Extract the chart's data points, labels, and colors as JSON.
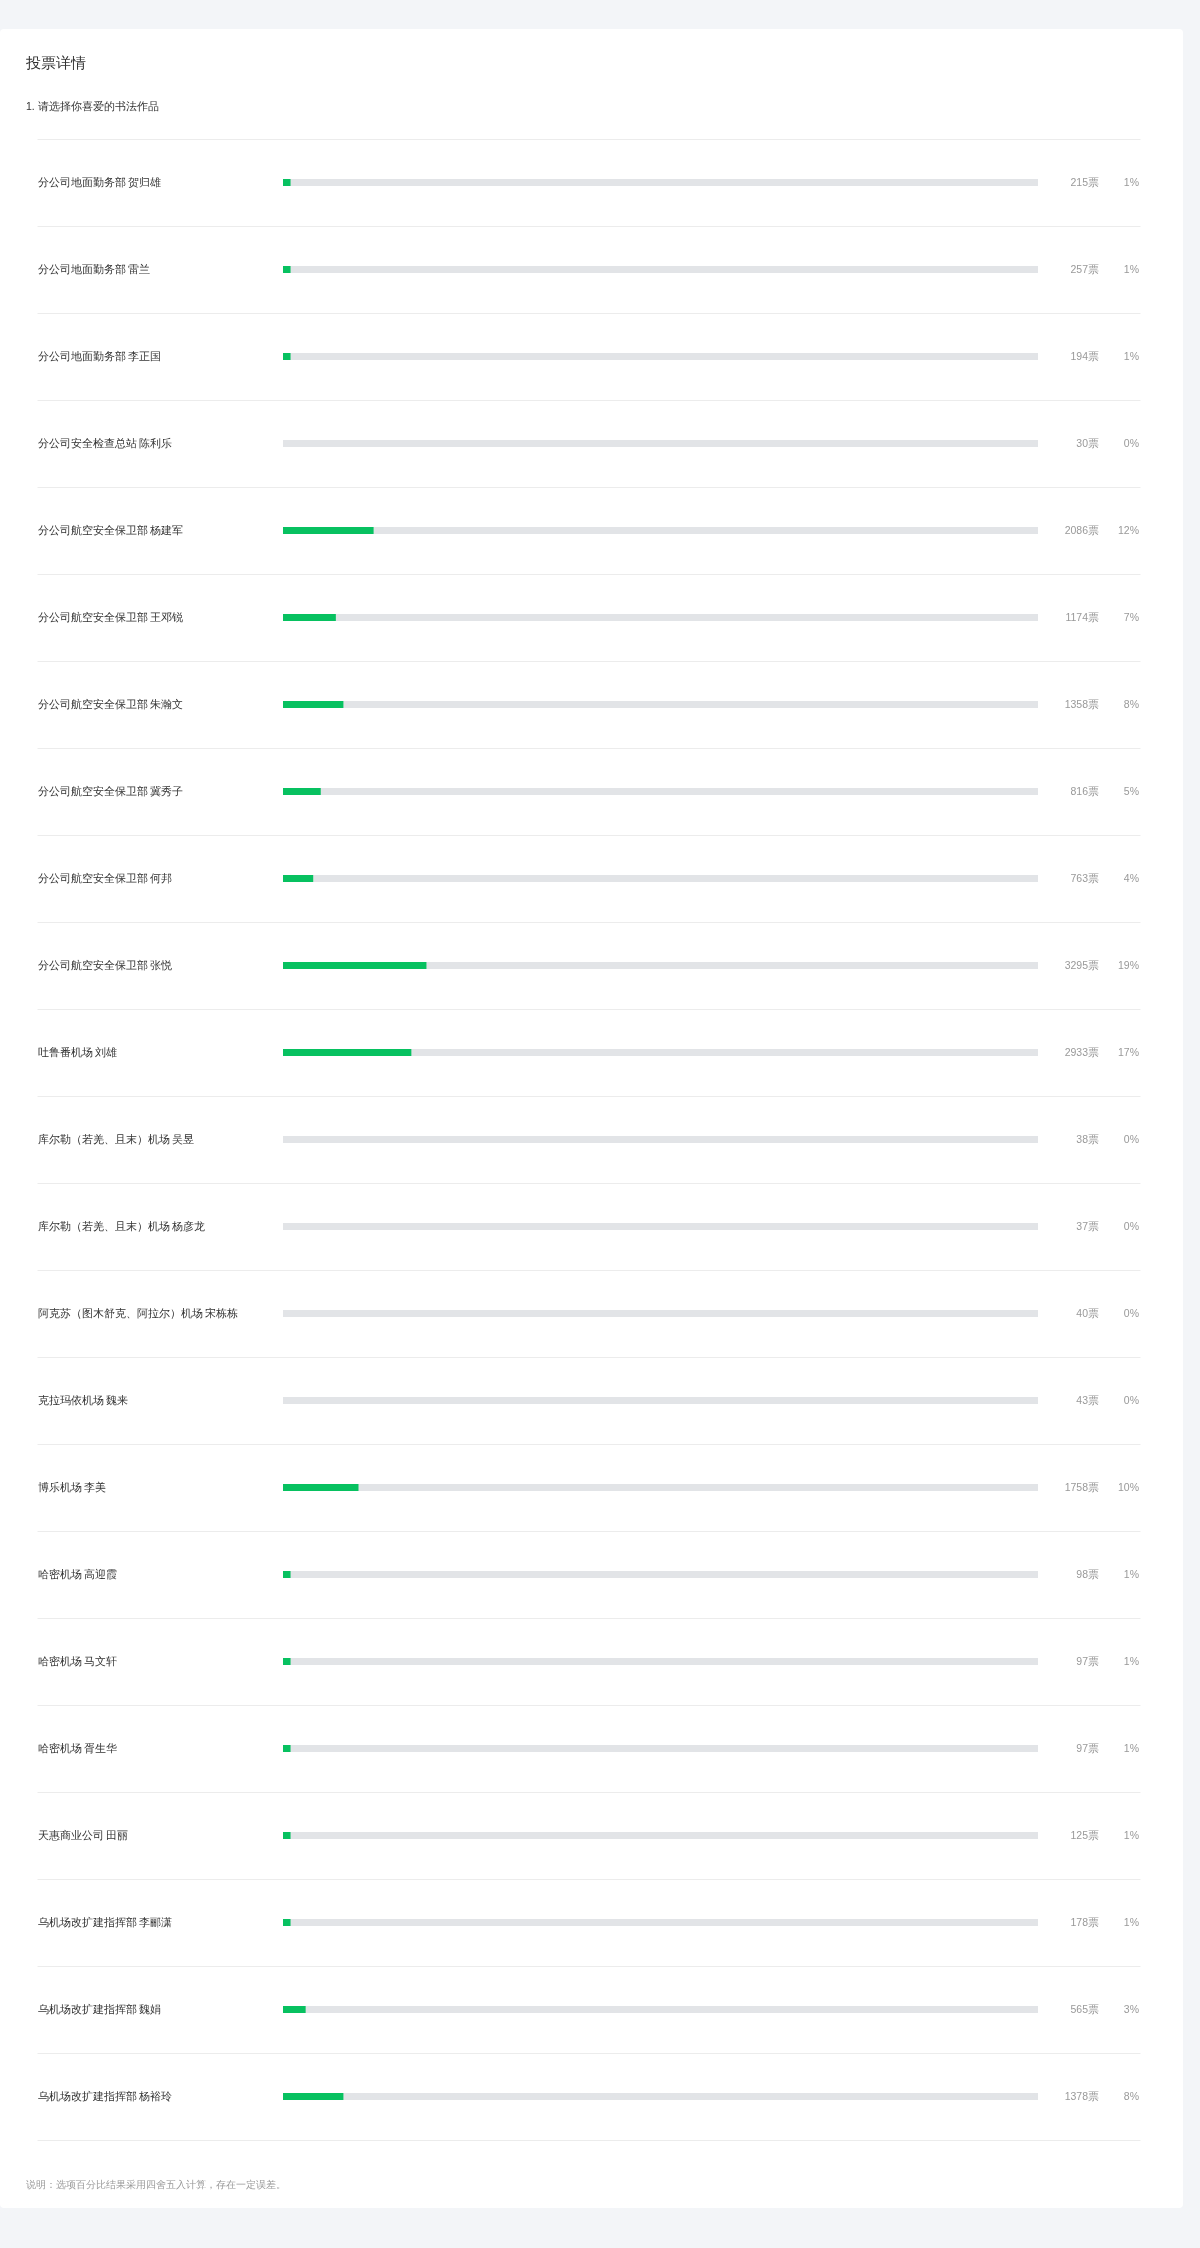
{
  "chart_data": {
    "type": "bar",
    "orientation": "horizontal",
    "title": "投票详情",
    "subtitle": "1. 请选择你喜爱的书法作品",
    "categories": [
      "分公司地面勤务部 贺归雄",
      "分公司地面勤务部 雷兰",
      "分公司地面勤务部 李正国",
      "分公司安全检查总站 陈利乐",
      "分公司航空安全保卫部 杨建军",
      "分公司航空安全保卫部 王邓锐",
      "分公司航空安全保卫部 朱瀚文",
      "分公司航空安全保卫部 冀秀子",
      "分公司航空安全保卫部 何邦",
      "分公司航空安全保卫部 张悦",
      "吐鲁番机场 刘雄",
      "库尔勒（若羌、且末）机场 吴昱",
      "库尔勒（若羌、且末）机场 杨彦龙",
      "阿克苏（图木舒克、阿拉尔）机场 宋栋栋",
      "克拉玛依机场 魏来",
      "博乐机场 李美",
      "哈密机场 高迎霞",
      "哈密机场 马文轩",
      "哈密机场 胥生华",
      "天惠商业公司 田丽",
      "乌机场改扩建指挥部 李郦潇",
      "乌机场改扩建指挥部 魏娟",
      "乌机场改扩建指挥部 杨裕玲"
    ],
    "values": [
      1,
      1,
      1,
      0,
      12,
      7,
      8,
      5,
      4,
      19,
      17,
      0,
      0,
      0,
      0,
      10,
      1,
      1,
      1,
      1,
      1,
      3,
      8
    ],
    "value_labels": [
      "1%",
      "1%",
      "1%",
      "0%",
      "12%",
      "7%",
      "8%",
      "5%",
      "4%",
      "19%",
      "17%",
      "0%",
      "0%",
      "0%",
      "0%",
      "10%",
      "1%",
      "1%",
      "1%",
      "1%",
      "1%",
      "3%",
      "8%"
    ],
    "color": "#07c160",
    "xlim": [
      0,
      100
    ],
    "tick_labels": "y",
    "grid": "y",
    "annotations": [
      "215票",
      "257票",
      "194票",
      "30票",
      "2086票",
      "1174票",
      "1358票",
      "816票",
      "763票",
      "3295票",
      "2933票",
      "38票",
      "37票",
      "40票",
      "43票",
      "1758票",
      "98票",
      "97票",
      "97票",
      "125票",
      "178票",
      "565票",
      "1378票",
      "说明：选项百分比结果采用四舍五入计算，存在一定误差。"
    ]
  }
}
